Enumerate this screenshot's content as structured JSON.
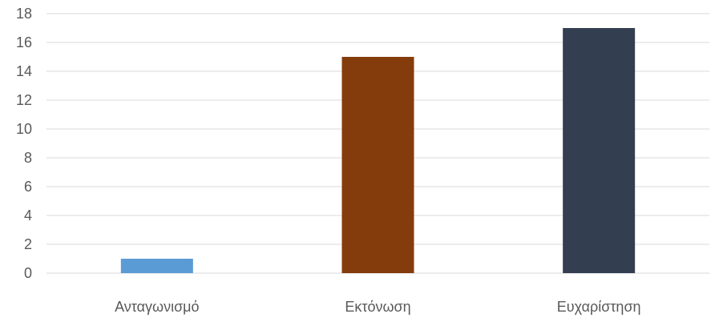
{
  "chart_data": {
    "type": "bar",
    "categories": [
      "Ανταγωνισμό",
      "Εκτόνωση",
      "Ευχαρίστηση"
    ],
    "values": [
      1,
      15,
      17
    ],
    "colors": [
      "#5b9bd5",
      "#843c0c",
      "#333f50"
    ],
    "title": "",
    "xlabel": "",
    "ylabel": "",
    "ylim": [
      0,
      18
    ],
    "yticks": [
      0,
      2,
      4,
      6,
      8,
      10,
      12,
      14,
      16,
      18
    ],
    "grid": true,
    "legend": "none"
  }
}
